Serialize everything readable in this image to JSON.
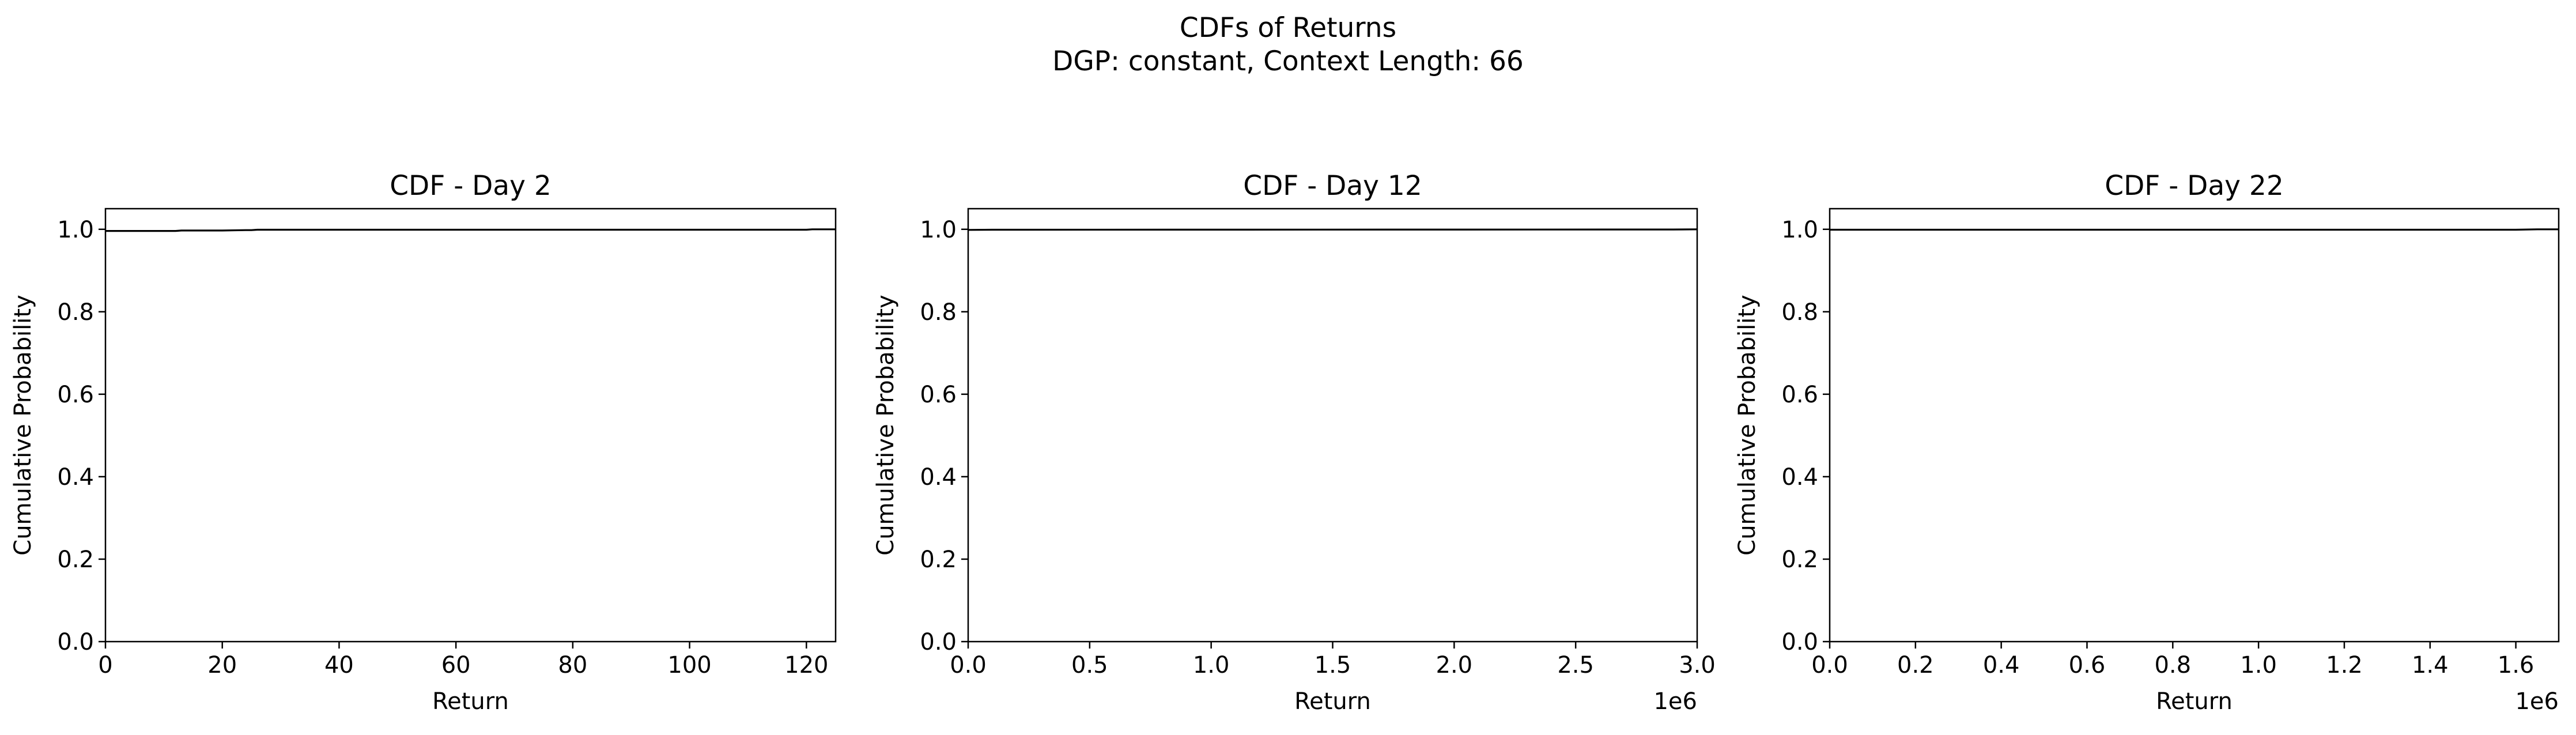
{
  "figure": {
    "title_line1": "CDFs of Returns",
    "title_line2": "DGP: constant, Context Length: 66"
  },
  "chart_data": [
    {
      "type": "line",
      "title": "CDF - Day 2",
      "xlabel": "Return",
      "ylabel": "Cumulative Probability",
      "xlim": [
        0,
        125
      ],
      "ylim": [
        0,
        1.05
      ],
      "x_ticks": [
        0,
        20,
        40,
        60,
        80,
        100,
        120
      ],
      "x_tick_labels": [
        "0",
        "20",
        "40",
        "60",
        "80",
        "100",
        "120"
      ],
      "y_ticks": [
        0,
        0.2,
        0.4,
        0.6,
        0.8,
        1.0
      ],
      "y_tick_labels": [
        "0.0",
        "0.2",
        "0.4",
        "0.6",
        "0.8",
        "1.0"
      ],
      "x_offset_label": "",
      "color": "#000000",
      "series": [
        {
          "x": [
            0,
            12,
            13,
            20,
            24,
            25,
            26,
            110,
            120,
            121,
            125
          ],
          "y": [
            0.996,
            0.996,
            0.997,
            0.997,
            0.998,
            0.998,
            0.999,
            0.999,
            0.999,
            1.0,
            1.0
          ]
        }
      ]
    },
    {
      "type": "line",
      "title": "CDF - Day 12",
      "xlabel": "Return",
      "ylabel": "Cumulative Probability",
      "xlim": [
        0,
        3.0
      ],
      "ylim": [
        0,
        1.05
      ],
      "x_ticks": [
        0,
        0.5,
        1.0,
        1.5,
        2.0,
        2.5,
        3.0
      ],
      "x_tick_labels": [
        "0.0",
        "0.5",
        "1.0",
        "1.5",
        "2.0",
        "2.5",
        "3.0"
      ],
      "y_ticks": [
        0,
        0.2,
        0.4,
        0.6,
        0.8,
        1.0
      ],
      "y_tick_labels": [
        "0.0",
        "0.2",
        "0.4",
        "0.6",
        "0.8",
        "1.0"
      ],
      "x_offset_label": "1e6",
      "color": "#000000",
      "series": [
        {
          "x": [
            0,
            0.1,
            2.9,
            3.0
          ],
          "y": [
            0.9985,
            0.999,
            0.9995,
            1.0
          ]
        }
      ]
    },
    {
      "type": "line",
      "title": "CDF - Day 22",
      "xlabel": "Return",
      "ylabel": "Cumulative Probability",
      "xlim": [
        0,
        1.7
      ],
      "ylim": [
        0,
        1.05
      ],
      "x_ticks": [
        0,
        0.2,
        0.4,
        0.6,
        0.8,
        1.0,
        1.2,
        1.4,
        1.6
      ],
      "x_tick_labels": [
        "0.0",
        "0.2",
        "0.4",
        "0.6",
        "0.8",
        "1.0",
        "1.2",
        "1.4",
        "1.6"
      ],
      "y_ticks": [
        0,
        0.2,
        0.4,
        0.6,
        0.8,
        1.0
      ],
      "y_tick_labels": [
        "0.0",
        "0.2",
        "0.4",
        "0.6",
        "0.8",
        "1.0"
      ],
      "x_offset_label": "1e6",
      "color": "#000000",
      "series": [
        {
          "x": [
            0,
            1.6,
            1.65,
            1.7
          ],
          "y": [
            0.999,
            0.999,
            1.0,
            1.0
          ]
        }
      ]
    }
  ]
}
